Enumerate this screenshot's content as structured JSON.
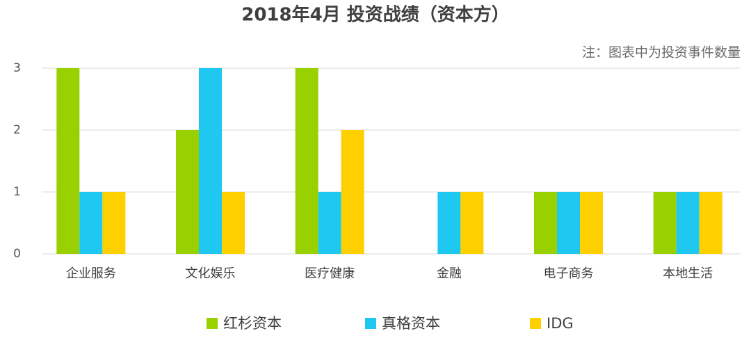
{
  "chart_data": {
    "type": "bar",
    "title": "2018年4月 投资战绩（资本方）",
    "annotation": "注：图表中为投资事件数量",
    "categories": [
      "企业服务",
      "文化娱乐",
      "医疗健康",
      "金融",
      "电子商务",
      "本地生活"
    ],
    "series": [
      {
        "name": "红杉资本",
        "color": "#99d100",
        "values": [
          3,
          2,
          3,
          0,
          1,
          1
        ]
      },
      {
        "name": "真格资本",
        "color": "#1ec8f0",
        "values": [
          1,
          3,
          1,
          1,
          1,
          1
        ]
      },
      {
        "name": "IDG",
        "color": "#ffd000",
        "values": [
          1,
          1,
          2,
          1,
          1,
          1
        ]
      }
    ],
    "ylim": [
      0,
      3
    ],
    "yticks": [
      0,
      1,
      2,
      3
    ],
    "grid": true
  }
}
